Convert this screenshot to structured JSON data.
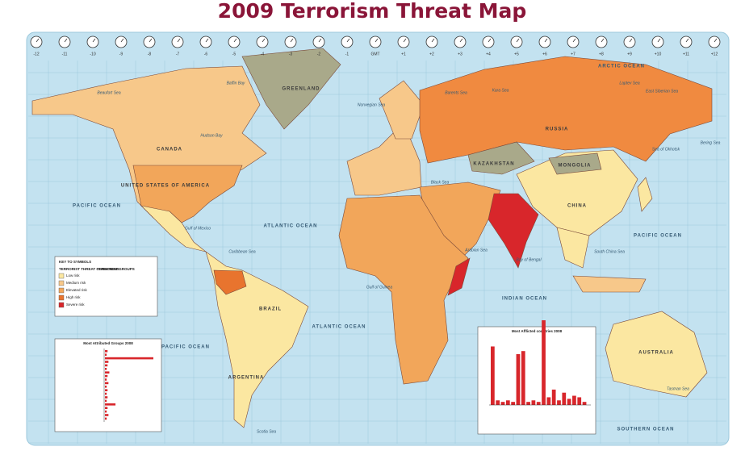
{
  "title": "2009 Terrorism Threat Map",
  "time_zones": [
    "-12",
    "-11",
    "-10",
    "-9",
    "-8",
    "-7",
    "-6",
    "-5",
    "-4",
    "-3",
    "-2",
    "-1",
    "GMT",
    "+1",
    "+2",
    "+3",
    "+4",
    "+5",
    "+6",
    "+7",
    "+8",
    "+9",
    "+10",
    "+11",
    "+12"
  ],
  "oceans": [
    "ARCTIC OCEAN",
    "PACIFIC OCEAN",
    "PACIFIC OCEAN",
    "ATLANTIC OCEAN",
    "ATLANTIC OCEAN",
    "INDIAN OCEAN",
    "PACIFIC OCEAN",
    "SOUTHERN OCEAN"
  ],
  "countries": [
    "CANADA",
    "UNITED STATES OF AMERICA",
    "GREENLAND",
    "RUSSIA",
    "KAZAKHSTAN",
    "MONGOLIA",
    "CHINA",
    "BRAZIL",
    "ARGENTINA",
    "AUSTRALIA"
  ],
  "seas": [
    "Beaufort Sea",
    "Baffin Bay",
    "Hudson Bay",
    "Gulf of Mexico",
    "Caribbean Sea",
    "Norwegian Sea",
    "Barents Sea",
    "Kara Sea",
    "Laptev Sea",
    "East Siberian Sea",
    "Bering Sea",
    "Sea of Okhotsk",
    "Black Sea",
    "Arabian Sea",
    "Bay of Bengal",
    "South China Sea",
    "Gulf of Guinea",
    "Tasman Sea",
    "Scotia Sea"
  ],
  "key": {
    "title": "KEY TO SYMBOLS",
    "conditions_heading": "TERRORIST THREAT CONDITIONS",
    "groups_heading": "TERRORIST GROUPS",
    "levels": [
      {
        "label": "Low risk",
        "color": "#fbe7a1"
      },
      {
        "label": "Medium risk",
        "color": "#f7c88a"
      },
      {
        "label": "Elevated risk",
        "color": "#f2a65a"
      },
      {
        "label": "High risk",
        "color": "#e8742e"
      },
      {
        "label": "Severe risk",
        "color": "#d8262b"
      }
    ]
  },
  "insets": {
    "groups": {
      "title": "Most Attributed Groups 2008",
      "values": [
        3,
        2,
        55,
        4,
        3,
        2,
        5,
        3,
        2,
        4,
        2,
        3,
        2,
        3,
        2,
        12,
        3,
        2,
        4,
        2
      ]
    },
    "countries": {
      "title": "Most Afflicted countries 2008",
      "values": [
        38,
        3,
        2,
        3,
        2,
        33,
        35,
        2,
        3,
        2,
        55,
        5,
        10,
        3,
        8,
        4,
        6,
        5,
        2
      ]
    }
  }
}
